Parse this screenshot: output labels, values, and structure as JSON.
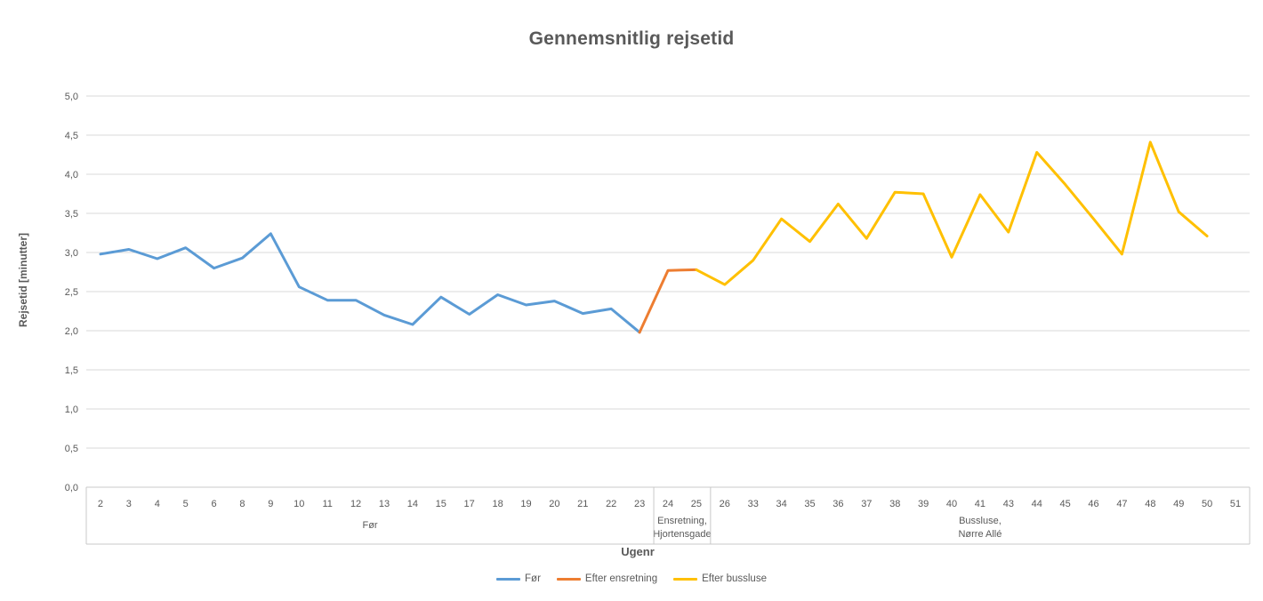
{
  "title": "Gennemsnitlig rejsetid",
  "y_axis": {
    "title": "Rejsetid [minutter]",
    "min": 0.0,
    "max": 5.0,
    "step": 0.5,
    "decimal_separator": ","
  },
  "x_axis": {
    "title": "Ugenr"
  },
  "colors": {
    "title_text": "#595959",
    "axis_text": "#595959",
    "gridline": "#D9D9D9",
    "axis_line": "#C9C9C9",
    "background": "#FFFFFF",
    "series_blue": "#5B9BD5",
    "series_orange": "#ED7D31",
    "series_yellow": "#FFC000"
  },
  "chart_data": {
    "type": "line",
    "title": "Gennemsnitlig rejsetid",
    "xlabel": "Ugenr",
    "ylabel": "Rejsetid [minutter]",
    "ylim": [
      0.0,
      5.0
    ],
    "ytick_step": 0.5,
    "grid": true,
    "legend_position": "bottom",
    "categories": [
      2,
      3,
      4,
      5,
      6,
      8,
      9,
      10,
      11,
      12,
      13,
      14,
      15,
      17,
      18,
      19,
      20,
      21,
      22,
      23,
      24,
      25,
      26,
      33,
      34,
      35,
      36,
      37,
      38,
      39,
      40,
      41,
      43,
      44,
      45,
      46,
      47,
      48,
      49,
      50,
      51
    ],
    "category_groups": [
      {
        "label": "Før",
        "label_lines": [
          "Før"
        ],
        "from": 2,
        "to": 23
      },
      {
        "label": "Ensretning, Hjortensgade",
        "label_lines": [
          "Ensretning,",
          "Hjortensgade"
        ],
        "from": 24,
        "to": 25
      },
      {
        "label": "Bussluse, Nørre Allé",
        "label_lines": [
          "Bussluse,",
          "Nørre Allé"
        ],
        "from": 26,
        "to": 51
      }
    ],
    "series": [
      {
        "name": "Før",
        "color": "#5B9BD5",
        "points": [
          [
            2,
            2.98
          ],
          [
            3,
            3.04
          ],
          [
            4,
            2.92
          ],
          [
            5,
            3.06
          ],
          [
            6,
            2.8
          ],
          [
            8,
            2.93
          ],
          [
            9,
            3.24
          ],
          [
            10,
            2.56
          ],
          [
            11,
            2.39
          ],
          [
            12,
            2.39
          ],
          [
            13,
            2.2
          ],
          [
            14,
            2.08
          ],
          [
            15,
            2.43
          ],
          [
            17,
            2.21
          ],
          [
            18,
            2.46
          ],
          [
            19,
            2.33
          ],
          [
            20,
            2.38
          ],
          [
            21,
            2.22
          ],
          [
            22,
            2.28
          ],
          [
            23,
            1.98
          ]
        ]
      },
      {
        "name": "Efter ensretning",
        "color": "#ED7D31",
        "points": [
          [
            23,
            1.98
          ],
          [
            24,
            2.77
          ],
          [
            25,
            2.78
          ]
        ]
      },
      {
        "name": "Efter bussluse",
        "color": "#FFC000",
        "points": [
          [
            25,
            2.78
          ],
          [
            26,
            2.59
          ],
          [
            33,
            2.9
          ],
          [
            34,
            3.43
          ],
          [
            35,
            3.14
          ],
          [
            36,
            3.62
          ],
          [
            37,
            3.18
          ],
          [
            38,
            3.77
          ],
          [
            39,
            3.75
          ],
          [
            40,
            2.94
          ],
          [
            41,
            3.74
          ],
          [
            43,
            3.26
          ],
          [
            44,
            4.28
          ],
          [
            45,
            3.87
          ],
          [
            46,
            3.43
          ],
          [
            47,
            2.98
          ],
          [
            48,
            4.41
          ],
          [
            49,
            3.52
          ],
          [
            50,
            3.21
          ]
        ]
      }
    ]
  }
}
